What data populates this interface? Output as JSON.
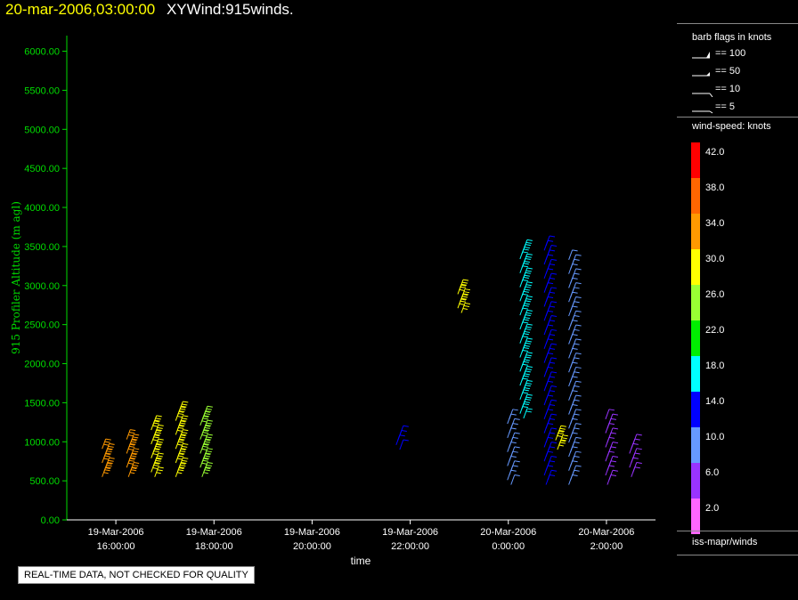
{
  "header": {
    "timestamp": "20-mar-2006,03:00:00",
    "dataset": "XYWind:915winds."
  },
  "notice": "REAL-TIME DATA, NOT CHECKED FOR QUALITY",
  "legend": {
    "flags_title": "barb flags in knots",
    "flags": [
      {
        "label": "== 100",
        "knots": 100
      },
      {
        "label": "== 50",
        "knots": 50
      },
      {
        "label": "== 10",
        "knots": 10
      },
      {
        "label": "== 5",
        "knots": 5
      }
    ],
    "colorbar_title": "wind-speed: knots",
    "colorbar": [
      {
        "label": "42.0",
        "color": "#ff0000"
      },
      {
        "label": "38.0",
        "color": "#ff6600"
      },
      {
        "label": "34.0",
        "color": "#ff9900"
      },
      {
        "label": "30.0",
        "color": "#ffff00"
      },
      {
        "label": "26.0",
        "color": "#99ff33"
      },
      {
        "label": "22.0",
        "color": "#00ee00"
      },
      {
        "label": "18.0",
        "color": "#00ffff"
      },
      {
        "label": "14.0",
        "color": "#0000ff"
      },
      {
        "label": "10.0",
        "color": "#6699ff"
      },
      {
        "label": "6.0",
        "color": "#9933ff"
      },
      {
        "label": "2.0",
        "color": "#ff66ff"
      }
    ],
    "source": "iss-mapr/winds"
  },
  "chart_data": {
    "type": "scatter",
    "xlabel": "time",
    "ylabel": "915 Profiler Altitude (m agl)",
    "ylim": [
      0,
      6200
    ],
    "yticks": [
      "0.00",
      "500.00",
      "1000.00",
      "1500.00",
      "2000.00",
      "2500.00",
      "3000.00",
      "3500.00",
      "4000.00",
      "4500.00",
      "5000.00",
      "5500.00",
      "6000.00"
    ],
    "xrange_hours": [
      "19-Mar-2006 15:00:00",
      "20-Mar-2006 03:00:00"
    ],
    "xticks": [
      {
        "date": "19-Mar-2006",
        "time": "16:00:00"
      },
      {
        "date": "19-Mar-2006",
        "time": "18:00:00"
      },
      {
        "date": "19-Mar-2006",
        "time": "20:00:00"
      },
      {
        "date": "19-Mar-2006",
        "time": "22:00:00"
      },
      {
        "date": "20-Mar-2006",
        "time": "0:00:00"
      },
      {
        "date": "20-Mar-2006",
        "time": "2:00:00"
      }
    ],
    "profiles": [
      {
        "time": "19-Mar-2006 15:45:00",
        "alt_min": 550,
        "alt_max": 950,
        "speed": 33
      },
      {
        "time": "19-Mar-2006 16:15:00",
        "alt_min": 550,
        "alt_max": 1050,
        "speed": 32
      },
      {
        "time": "19-Mar-2006 16:45:00",
        "alt_min": 550,
        "alt_max": 1250,
        "speed": 31
      },
      {
        "time": "19-Mar-2006 17:15:00",
        "alt_min": 550,
        "alt_max": 1400,
        "speed": 28
      },
      {
        "time": "19-Mar-2006 17:45:00",
        "alt_min": 550,
        "alt_max": 1350,
        "speed": 25
      },
      {
        "time": "19-Mar-2006 21:45:00",
        "alt_min": 900,
        "alt_max": 1100,
        "speed": 14
      },
      {
        "time": "19-Mar-2006 23:00:00",
        "alt_min": 2650,
        "alt_max": 2950,
        "speed": 29
      },
      {
        "time": "20-Mar-2006 00:00:00",
        "alt_min": 450,
        "alt_max": 1300,
        "speed": 11
      },
      {
        "time": "20-Mar-2006 00:15:00",
        "alt_min": 1300,
        "alt_max": 3500,
        "speed": 17
      },
      {
        "time": "20-Mar-2006 00:45:00",
        "alt_min": 450,
        "alt_max": 3550,
        "speed": 14
      },
      {
        "time": "20-Mar-2006 01:00:00",
        "alt_min": 900,
        "alt_max": 1100,
        "speed": 29
      },
      {
        "time": "20-Mar-2006 01:15:00",
        "alt_min": 450,
        "alt_max": 3350,
        "speed": 11
      },
      {
        "time": "20-Mar-2006 02:00:00",
        "alt_min": 450,
        "alt_max": 1300,
        "speed": 7
      },
      {
        "time": "20-Mar-2006 02:30:00",
        "alt_min": 550,
        "alt_max": 1000,
        "speed": 7
      }
    ]
  }
}
